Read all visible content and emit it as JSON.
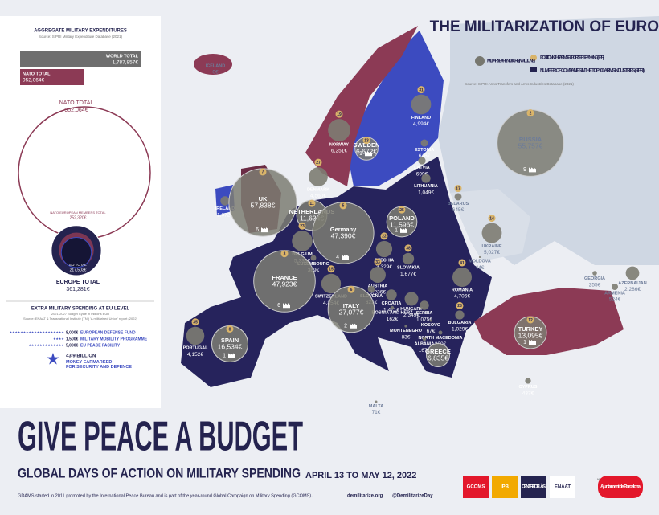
{
  "header": {
    "title": "THE MILITARIZATION OF EUROPE",
    "legend": [
      "MILITARY EXPENDITURE (IN MILLIONS)",
      "POSITION IN THE ARMS EXPORTERS RANKING (SIPRI)",
      "NUMBER OF COMPANIES IN THE TOP 100 ARMS INDUSTRIES (SIPRI)"
    ],
    "source": "Source: SIPRI Arms Transfers and Arms Industries Database (2021)"
  },
  "aggregate": {
    "title": "AGGREGATE MILITARY EXPENDITURES",
    "source": "Source: SIPRI Military Expenditure Database (2021)",
    "bars": [
      {
        "label": "WORLD TOTAL",
        "value": 1787857,
        "value_label": "1,787,857€"
      },
      {
        "label": "NATO TOTAL",
        "value": 952064,
        "value_label": "952,064€"
      }
    ],
    "circles": [
      {
        "label": "NATO TOTAL",
        "value": 952064,
        "value_label": "952,064€"
      },
      {
        "label": "EUROPE TOTAL",
        "value": 361281,
        "value_label": "361,281€"
      },
      {
        "label": "NATO EUROPEAN MEMBERS TOTAL",
        "value": 252320,
        "value_label": "252,320€"
      },
      {
        "label": "EU TOTAL",
        "value": 217503,
        "value_label": "217,503€"
      }
    ]
  },
  "extra": {
    "title": "EXTRA MILITARY SPENDING AT EU LEVEL",
    "subtitle": "2021-2027 Budget Cycle in millions EUR",
    "source": "Source: ENAAT & Transnational Institute (TNI) 'A militarised Union' report (2022)",
    "items": [
      {
        "value": 8000,
        "value_label": "8,000€",
        "label": "EUROPEAN DEFENSE FUND"
      },
      {
        "value": 1500,
        "value_label": "1,500€",
        "label": "MILITARY MOBILITY PROGRAMME"
      },
      {
        "value": 5000,
        "value_label": "5,000€",
        "label": "EU PEACE FACILITY"
      }
    ],
    "total": "43.9 BILLION",
    "total_text": "MONEY EARMARKED FOR SECURITY AND DEFENCE"
  },
  "countries": [
    {
      "name": "ICELAND",
      "value": 0,
      "value_label": "0€"
    },
    {
      "name": "NORWAY",
      "value": 6251,
      "value_label": "6,251€",
      "rank": 19
    },
    {
      "name": "SWEDEN",
      "value": 6672,
      "value_label": "6,672€",
      "rank": 13,
      "companies": 1
    },
    {
      "name": "FINLAND",
      "value": 4994,
      "value_label": "4,994€",
      "rank": 31
    },
    {
      "name": "ESTONIA",
      "value": 646,
      "value_label": "646€"
    },
    {
      "name": "LATVIA",
      "value": 699,
      "value_label": "699€"
    },
    {
      "name": "LITHUANIA",
      "value": 1049,
      "value_label": "1,049€"
    },
    {
      "name": "DENMARK",
      "value": 4560,
      "value_label": "4,560€",
      "rank": 27
    },
    {
      "name": "IRELAND",
      "value": 1072,
      "value_label": "1,072€"
    },
    {
      "name": "UK",
      "value": 57838,
      "value_label": "57,838€",
      "rank": 7,
      "companies": 6
    },
    {
      "name": "NETHERLANDS",
      "value": 11634,
      "value_label": "11,634€",
      "rank": 11
    },
    {
      "name": "BELGIUM",
      "value": 5339,
      "value_label": "5,339€",
      "rank": 23
    },
    {
      "name": "LUXEMBOURG",
      "value": 389,
      "value_label": "389€"
    },
    {
      "name": "Germany",
      "value": 47390,
      "value_label": "47,390€",
      "rank": 5,
      "companies": 4
    },
    {
      "name": "POLAND",
      "value": 11596,
      "value_label": "11,596€",
      "rank": 25,
      "companies": 1
    },
    {
      "name": "CZECHIA",
      "value": 3329,
      "value_label": "3,329€",
      "rank": 22
    },
    {
      "name": "SLOVAKIA",
      "value": 1677,
      "value_label": "1,677€",
      "rank": 38
    },
    {
      "name": "AUSTRIA",
      "value": 3236,
      "value_label": "3,236€",
      "rank": 33
    },
    {
      "name": "HUNGARY",
      "value": 2349,
      "value_label": "2,349€"
    },
    {
      "name": "SWITZERLAND",
      "value": 4854,
      "value_label": "4,854€",
      "rank": 15
    },
    {
      "name": "FRANCE",
      "value": 47923,
      "value_label": "47,923€",
      "rank": 3,
      "companies": 6
    },
    {
      "name": "SLOVENIA",
      "value": 621,
      "value_label": "621€"
    },
    {
      "name": "CROATIA",
      "value": 1471,
      "value_label": "1,471€"
    },
    {
      "name": "BOSNIA AND HERZ",
      "value": 162,
      "value_label": "162€"
    },
    {
      "name": "SERBIA",
      "value": 1075,
      "value_label": "1,075€"
    },
    {
      "name": "ROMANIA",
      "value": 4706,
      "value_label": "4,706€",
      "rank": 41
    },
    {
      "name": "BULGARIA",
      "value": 1029,
      "value_label": "1,029€",
      "rank": 28
    },
    {
      "name": "MONTENEGRO",
      "value": 83,
      "value_label": "83€"
    },
    {
      "name": "KOSOVO",
      "value": 67,
      "value_label": "67€"
    },
    {
      "name": "NORTH MACEDONIA",
      "value": 200,
      "value_label": "200€"
    },
    {
      "name": "ALBANIA",
      "value": 167,
      "value_label": "167€"
    },
    {
      "name": "GREECE",
      "value": 6835,
      "value_label": "6,835€"
    },
    {
      "name": "ITALY",
      "value": 27077,
      "value_label": "27,077€",
      "rank": 6,
      "companies": 2
    },
    {
      "name": "SPAIN",
      "value": 16534,
      "value_label": "16,534€",
      "rank": 8,
      "companies": 1
    },
    {
      "name": "PORTUGAL",
      "value": 4152,
      "value_label": "4,152€",
      "rank": 35
    },
    {
      "name": "MALTA",
      "value": 71,
      "value_label": "71€"
    },
    {
      "name": "CYPRUS",
      "value": 437,
      "value_label": "437€"
    },
    {
      "name": "TURKEY",
      "value": 13095,
      "value_label": "13,095€",
      "rank": 12,
      "companies": 1
    },
    {
      "name": "RUSSIA",
      "value": 55757,
      "value_label": "55,757€",
      "rank": 2,
      "companies": 9
    },
    {
      "name": "BELARUS",
      "value": 645,
      "value_label": "645€",
      "rank": 17
    },
    {
      "name": "UKRAINE",
      "value": 5027,
      "value_label": "5,027€",
      "rank": 14
    },
    {
      "name": "MOLDOVA",
      "value": 44,
      "value_label": "44€"
    },
    {
      "name": "GEORGIA",
      "value": 255,
      "value_label": "255€"
    },
    {
      "name": "AZERBAIJAN",
      "value": 2286,
      "value_label": "2,286€"
    },
    {
      "name": "ARMENIA",
      "value": 524,
      "value_label": "524€"
    }
  ],
  "footer": {
    "title": "GIVE PEACE A BUDGET",
    "subtitle": "GLOBAL DAYS OF ACTION ON MILITARY SPENDING",
    "dates": "APRIL 13 TO MAY 12, 2022",
    "note": "GDAMS started in 2011 promoted by the International Peace Bureau and is part of the year-round Global Campaign on Military Spending (GCOMS).",
    "site": "demilitarize.org",
    "handle": "@DemilitarizeDay",
    "support": "With the support of",
    "logos": [
      "GCOMS",
      "IPB",
      "CENTRE DELÀS",
      "ENAAT",
      "Ajuntament de Barcelona"
    ]
  }
}
